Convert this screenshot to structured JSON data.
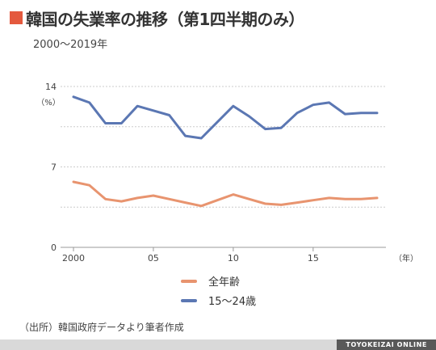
{
  "header": {
    "title": "韓国の失業率の推移（第1四半期のみ）",
    "subtitle": "2000～2019年"
  },
  "chart_data": {
    "type": "line",
    "x": [
      2000,
      2001,
      2002,
      2003,
      2004,
      2005,
      2006,
      2007,
      2008,
      2009,
      2010,
      2011,
      2012,
      2013,
      2014,
      2015,
      2016,
      2017,
      2018,
      2019
    ],
    "series": [
      {
        "name": "全年齢",
        "color": "#e8946f",
        "values": [
          5.7,
          5.4,
          4.2,
          4.0,
          4.3,
          4.5,
          4.2,
          3.9,
          3.6,
          4.1,
          4.6,
          4.2,
          3.8,
          3.7,
          3.9,
          4.1,
          4.3,
          4.2,
          4.2,
          4.3
        ]
      },
      {
        "name": "15～24歳",
        "color": "#5b77b3",
        "values": [
          13.1,
          12.6,
          10.8,
          10.8,
          12.3,
          11.9,
          11.5,
          9.7,
          9.5,
          10.9,
          12.3,
          11.4,
          10.3,
          10.4,
          11.7,
          12.4,
          12.6,
          11.6,
          11.7,
          11.7
        ]
      }
    ],
    "yticks": [
      0,
      7,
      14
    ],
    "ylim": [
      0,
      14
    ],
    "xticks": [
      {
        "value": 2000,
        "label": "2000"
      },
      {
        "value": 2005,
        "label": "05"
      },
      {
        "value": 2010,
        "label": "10"
      },
      {
        "value": 2015,
        "label": "15"
      }
    ],
    "xlim": [
      2000,
      2019
    ],
    "ylabel": "（%）",
    "xlabel": "（年）",
    "grid": true
  },
  "legend": {
    "items": [
      "全年齢",
      "15～24歳"
    ]
  },
  "footer": {
    "source": "（出所）韓国政府データより筆者作成",
    "brand": "TOYOKEIZAI ONLINE"
  }
}
